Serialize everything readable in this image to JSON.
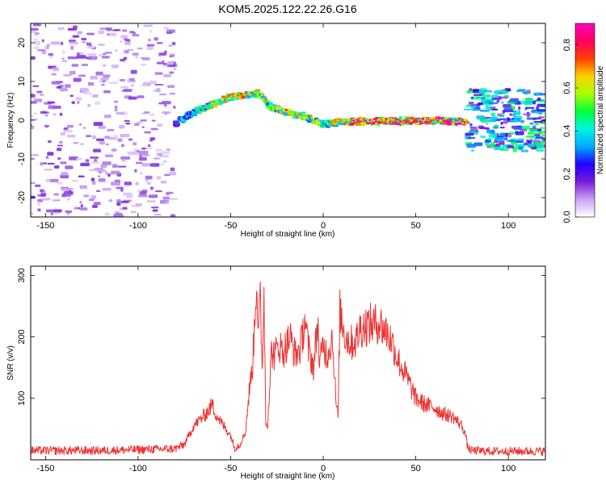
{
  "figure_title": "KOM5.2025.122.22.26.G16",
  "chart_data": [
    {
      "type": "heatmap",
      "xlabel": "Height of straight line (km)",
      "ylabel": "Frequency (Hz)",
      "xlim": [
        -158,
        120
      ],
      "ylim": [
        -25,
        25
      ],
      "xticks": [
        -150,
        -100,
        -50,
        0,
        50,
        100
      ],
      "yticks": [
        -20,
        -10,
        0,
        10,
        20
      ],
      "colorbar": {
        "label": "Normalized spectral amplitude",
        "range": [
          0.0,
          0.9
        ],
        "ticks": [
          "0.0",
          "0.2",
          "0.4",
          "0.6",
          "0.8"
        ],
        "colormap": [
          "#ffffff",
          "#c9a3f5",
          "#7a1dd8",
          "#2200ff",
          "#00a8ff",
          "#00f5e0",
          "#00ff3a",
          "#a8ff00",
          "#ffd000",
          "#ff4000",
          "#ff0060",
          "#ff00c0"
        ]
      },
      "signal_track": {
        "x": [
          -80,
          -70,
          -60,
          -50,
          -43,
          -35,
          -30,
          -20,
          -10,
          0,
          10,
          20,
          40,
          60,
          78
        ],
        "frequency": [
          -1,
          2,
          4,
          6,
          6.5,
          7,
          4,
          2,
          1,
          -1,
          -0.5,
          -0.3,
          -0.2,
          -0.2,
          -0.3
        ],
        "amplitude": [
          0.25,
          0.45,
          0.55,
          0.6,
          0.65,
          0.55,
          0.55,
          0.6,
          0.6,
          0.5,
          0.65,
          0.8,
          0.85,
          0.8,
          0.7
        ]
      },
      "noise_regions": [
        {
          "x": [
            -158,
            -80
          ],
          "frequency": [
            -25,
            25
          ],
          "amplitude": 0.1
        },
        {
          "x": [
            78,
            120
          ],
          "frequency": [
            -8,
            8
          ],
          "amplitude": 0.3
        }
      ]
    },
    {
      "type": "line",
      "xlabel": "Height of straight line (km)",
      "ylabel": "SNR (v/v)",
      "xlim": [
        -158,
        120
      ],
      "ylim": [
        0,
        315
      ],
      "xticks": [
        -150,
        -100,
        -50,
        0,
        50,
        100
      ],
      "yticks": [
        100,
        200,
        300
      ],
      "series": [
        {
          "color": "#ee3333",
          "x": [
            -158,
            -120,
            -80,
            -75,
            -70,
            -65,
            -62,
            -60,
            -58,
            -55,
            -50,
            -48,
            -45,
            -42,
            -40,
            -38,
            -36,
            -35,
            -34,
            -33,
            -32,
            -31,
            -30,
            -28,
            -26,
            -24,
            -22,
            -20,
            -18,
            -15,
            -12,
            -10,
            -8,
            -5,
            -3,
            -2,
            0,
            2,
            5,
            7,
            8,
            9,
            10,
            12,
            15,
            18,
            20,
            25,
            28,
            30,
            32,
            35,
            38,
            40,
            45,
            50,
            55,
            60,
            65,
            70,
            75,
            77,
            78,
            80,
            90,
            100,
            110,
            120
          ],
          "y": [
            15,
            15,
            18,
            25,
            55,
            70,
            80,
            90,
            75,
            60,
            40,
            20,
            25,
            45,
            110,
            160,
            300,
            200,
            260,
            150,
            270,
            60,
            60,
            175,
            170,
            190,
            175,
            185,
            200,
            170,
            185,
            230,
            180,
            150,
            230,
            150,
            190,
            170,
            200,
            90,
            70,
            240,
            230,
            200,
            190,
            195,
            215,
            220,
            220,
            225,
            215,
            205,
            185,
            165,
            135,
            100,
            90,
            85,
            75,
            70,
            55,
            40,
            20,
            15,
            14,
            14,
            14,
            14
          ]
        }
      ]
    }
  ]
}
